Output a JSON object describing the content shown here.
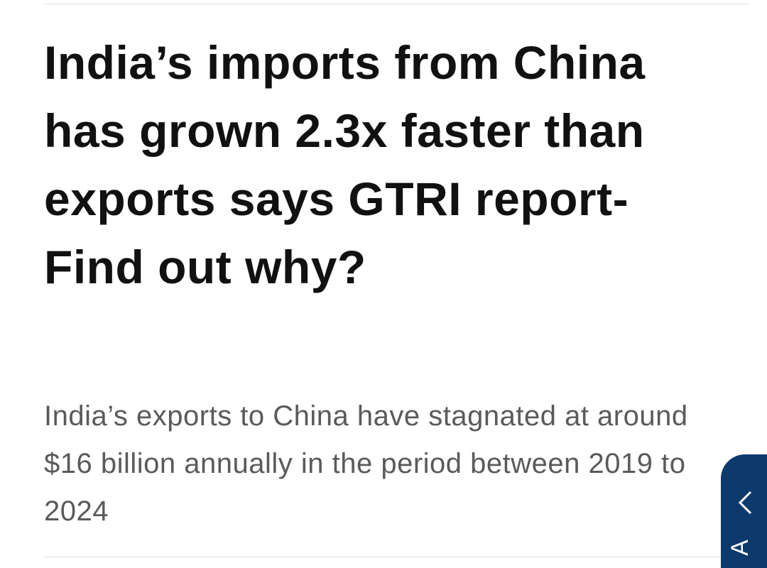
{
  "article": {
    "title": "India’s imports from China has grown 2.3x faster than exports says GTRI report- Find out why?",
    "subtitle": "India’s exports to China have stagnated at around $16 billion annually in the period between 2019 to 2024"
  },
  "side_tab": {
    "label": "A"
  }
}
